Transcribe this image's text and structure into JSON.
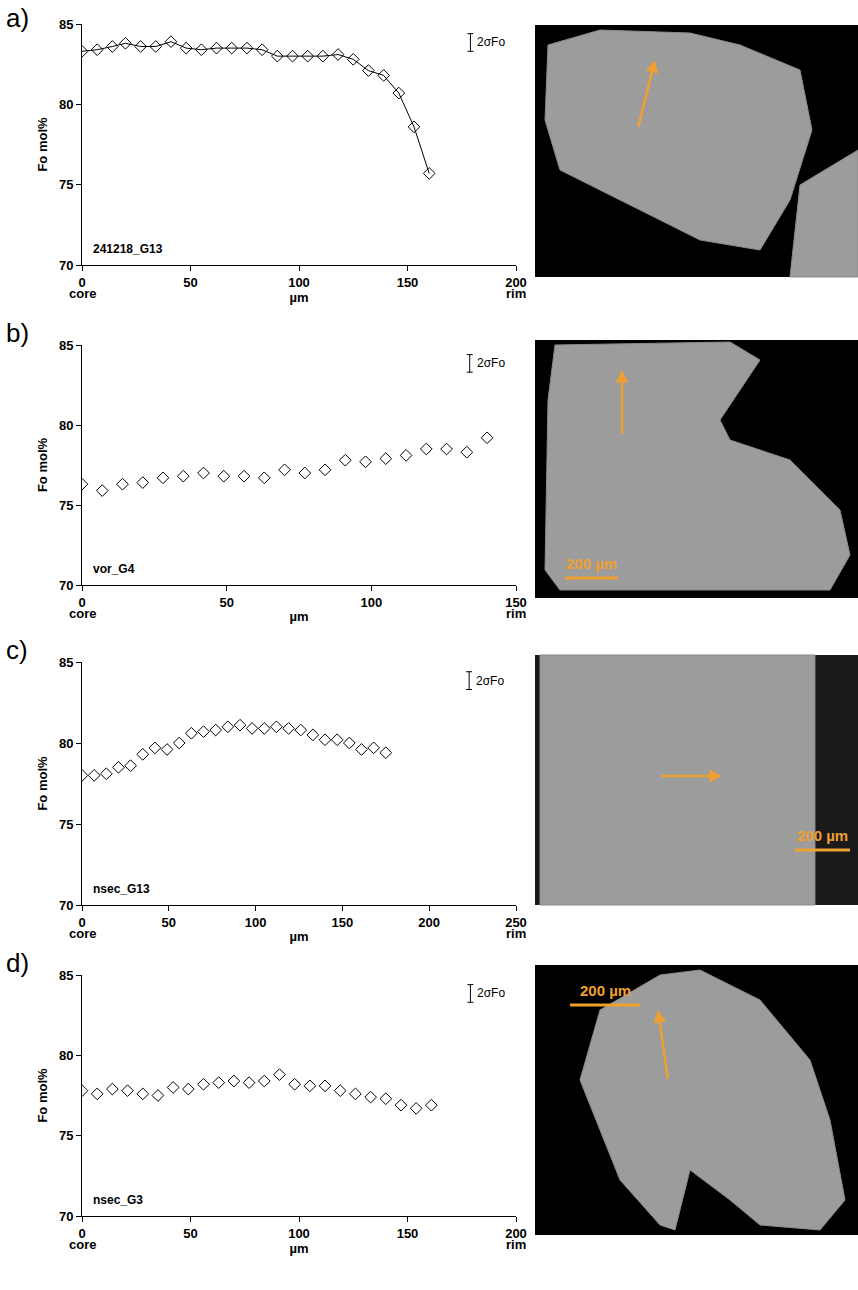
{
  "chart_data": [
    {
      "type": "line",
      "panel": "a)",
      "sample": "241218_G13",
      "xlabel": "µm",
      "ylabel": "Fo mol%",
      "x_start_label": "core",
      "x_end_label": "rim",
      "x": [
        0,
        7,
        14,
        20,
        27,
        34,
        41,
        48,
        55,
        62,
        69,
        76,
        83,
        90,
        97,
        104,
        111,
        118,
        125,
        132,
        139,
        146,
        153,
        160
      ],
      "values": [
        83.3,
        83.4,
        83.6,
        83.8,
        83.6,
        83.6,
        83.9,
        83.5,
        83.4,
        83.5,
        83.5,
        83.5,
        83.4,
        83.0,
        83.0,
        83.0,
        83.0,
        83.1,
        82.8,
        82.1,
        81.8,
        80.7,
        78.6,
        75.7
      ],
      "xlim": [
        0,
        200
      ],
      "xticks": [
        0,
        50,
        100,
        150,
        200
      ],
      "ylim": [
        70,
        85
      ],
      "yticks": [
        70,
        75,
        80,
        85
      ],
      "grid": false,
      "color": "#000000",
      "marker": "diamond-open",
      "line_style": "solid",
      "error_bar": {
        "label": "2σFo",
        "x": 179,
        "low": 83.3,
        "high": 84.4
      }
    },
    {
      "type": "scatter",
      "panel": "b)",
      "sample": "vor_G4",
      "xlabel": "µm",
      "ylabel": "Fo mol%",
      "x_start_label": "core",
      "x_end_label": "rim",
      "x": [
        0,
        7,
        14,
        21,
        28,
        35,
        42,
        49,
        56,
        63,
        70,
        77,
        84,
        91,
        98,
        105,
        112,
        119,
        126,
        133,
        140
      ],
      "values": [
        76.3,
        75.9,
        76.3,
        76.4,
        76.7,
        76.8,
        77.0,
        76.8,
        76.8,
        76.7,
        77.2,
        77.0,
        77.2,
        77.8,
        77.7,
        77.9,
        78.1,
        78.5,
        78.5,
        78.3,
        79.2
      ],
      "xlim": [
        0,
        150
      ],
      "xticks": [
        0,
        50,
        100,
        150
      ],
      "ylim": [
        70,
        85
      ],
      "yticks": [
        70,
        75,
        80,
        85
      ],
      "grid": false,
      "color": "#000000",
      "marker": "diamond-open",
      "line_style": "none",
      "error_bar": {
        "label": "2σFo",
        "x": 134,
        "low": 83.3,
        "high": 84.4
      },
      "scale_bar": "200 µm"
    },
    {
      "type": "scatter",
      "panel": "c)",
      "sample": "nsec_G13",
      "xlabel": "µm",
      "ylabel": "Fo mol%",
      "x_start_label": "core",
      "x_end_label": "rim",
      "x": [
        0,
        7,
        14,
        21,
        28,
        35,
        42,
        49,
        56,
        63,
        70,
        77,
        84,
        91,
        98,
        105,
        112,
        119,
        126,
        133,
        140,
        147,
        154,
        161,
        168,
        175
      ],
      "values": [
        78.0,
        78.0,
        78.1,
        78.5,
        78.6,
        79.3,
        79.7,
        79.6,
        80.0,
        80.6,
        80.7,
        80.8,
        81.0,
        81.1,
        80.9,
        80.9,
        81.0,
        80.9,
        80.8,
        80.5,
        80.2,
        80.2,
        80.0,
        79.6,
        79.7,
        79.4
      ],
      "xlim": [
        0,
        250
      ],
      "xticks": [
        0,
        50,
        100,
        150,
        200,
        250
      ],
      "ylim": [
        70,
        85
      ],
      "yticks": [
        70,
        75,
        80,
        85
      ],
      "grid": false,
      "color": "#000000",
      "marker": "diamond-open",
      "line_style": "none",
      "error_bar": {
        "label": "2σFo",
        "x": 223,
        "low": 83.3,
        "high": 84.4
      },
      "scale_bar": "200 µm"
    },
    {
      "type": "scatter",
      "panel": "d)",
      "sample": "nsec_G3",
      "xlabel": "µm",
      "ylabel": "Fo mol%",
      "x_start_label": "core",
      "x_end_label": "rim",
      "x": [
        0,
        7,
        14,
        21,
        28,
        35,
        42,
        49,
        56,
        63,
        70,
        77,
        84,
        91,
        98,
        105,
        112,
        119,
        126,
        133,
        140,
        147,
        154,
        161
      ],
      "values": [
        77.8,
        77.6,
        77.9,
        77.8,
        77.6,
        77.5,
        78.0,
        77.9,
        78.2,
        78.3,
        78.4,
        78.3,
        78.4,
        78.8,
        78.2,
        78.1,
        78.1,
        77.8,
        77.6,
        77.4,
        77.3,
        76.9,
        76.7,
        76.9
      ],
      "xlim": [
        0,
        200
      ],
      "xticks": [
        0,
        50,
        100,
        150,
        200
      ],
      "ylim": [
        70,
        85
      ],
      "yticks": [
        70,
        75,
        80,
        85
      ],
      "grid": false,
      "color": "#000000",
      "marker": "diamond-open",
      "line_style": "none",
      "error_bar": {
        "label": "2σFo",
        "x": 179,
        "low": 83.3,
        "high": 84.4
      },
      "scale_bar": "200 µm"
    }
  ]
}
